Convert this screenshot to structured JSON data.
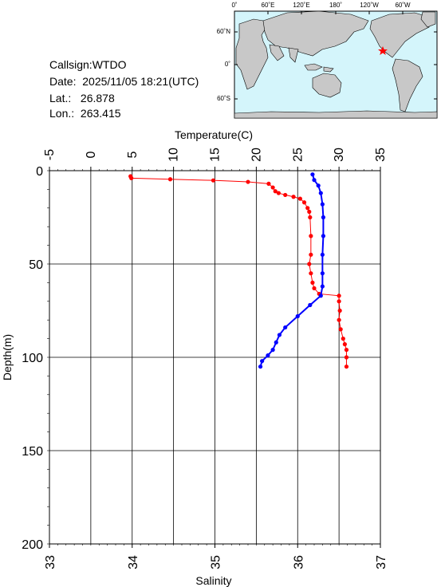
{
  "station": {
    "callsign": "Callsign:WTDO",
    "date": "Date:  2025/11/05 18:21(UTC)",
    "lat": "Lat.:   26.878",
    "lon": "Lon.:  263.415"
  },
  "map": {
    "top_ticks": [
      "0˚",
      "60˚E",
      "120˚E",
      "180˚",
      "120˚W",
      "60˚W"
    ],
    "lat_ticks": [
      "60˚N",
      "0˚",
      "60˚S"
    ],
    "ocean_color": "#d4f5fb",
    "land_color": "#c8c8c8",
    "marker_color": "#ff0000",
    "marker_icon": "star-icon"
  },
  "chart_data": {
    "type": "line",
    "title": "",
    "y_axis": {
      "label": "Depth(m)",
      "range": [
        0,
        200
      ],
      "ticks": [
        0,
        50,
        100,
        150,
        200
      ],
      "inverted": true
    },
    "x_top_axis": {
      "label": "Temperature(C)",
      "range": [
        -5,
        35
      ],
      "ticks": [
        -5,
        0,
        5,
        10,
        15,
        20,
        25,
        30,
        35
      ]
    },
    "x_bottom_axis": {
      "label": "Salinity",
      "range": [
        33,
        37
      ],
      "ticks": [
        33,
        34,
        35,
        36,
        37
      ]
    },
    "grid": true,
    "series": [
      {
        "axis": "temperature",
        "color": "#ff0000",
        "points": [
          [
            4.8,
            3
          ],
          [
            4.9,
            4
          ],
          [
            9.6,
            4.6
          ],
          [
            14.8,
            5.2
          ],
          [
            19.0,
            6
          ],
          [
            21.5,
            7
          ],
          [
            22.0,
            9
          ],
          [
            22.3,
            11
          ],
          [
            22.7,
            12
          ],
          [
            23.5,
            13
          ],
          [
            24.5,
            14
          ],
          [
            25.3,
            15
          ],
          [
            25.8,
            17
          ],
          [
            26.2,
            20
          ],
          [
            26.4,
            22
          ],
          [
            26.5,
            25
          ],
          [
            26.6,
            35
          ],
          [
            26.6,
            45
          ],
          [
            26.4,
            50
          ],
          [
            26.6,
            55
          ],
          [
            26.8,
            60
          ],
          [
            27.0,
            63
          ],
          [
            27.6,
            66
          ],
          [
            30.0,
            67
          ],
          [
            30.0,
            70
          ],
          [
            30.1,
            75
          ],
          [
            30.0,
            80
          ],
          [
            30.2,
            85
          ],
          [
            30.5,
            90
          ],
          [
            30.7,
            93
          ],
          [
            30.9,
            96
          ],
          [
            30.9,
            100
          ],
          [
            30.9,
            105
          ]
        ]
      },
      {
        "axis": "salinity",
        "color": "#0000ff",
        "points": [
          [
            36.18,
            2
          ],
          [
            36.2,
            5
          ],
          [
            36.25,
            8
          ],
          [
            36.28,
            12
          ],
          [
            36.3,
            18
          ],
          [
            36.31,
            25
          ],
          [
            36.31,
            35
          ],
          [
            36.3,
            45
          ],
          [
            36.3,
            55
          ],
          [
            36.3,
            62
          ],
          [
            36.28,
            67
          ],
          [
            36.15,
            72
          ],
          [
            36.0,
            78
          ],
          [
            35.85,
            84
          ],
          [
            35.78,
            88
          ],
          [
            35.74,
            92
          ],
          [
            35.7,
            96
          ],
          [
            35.64,
            99
          ],
          [
            35.57,
            102
          ],
          [
            35.55,
            105
          ]
        ]
      }
    ]
  }
}
